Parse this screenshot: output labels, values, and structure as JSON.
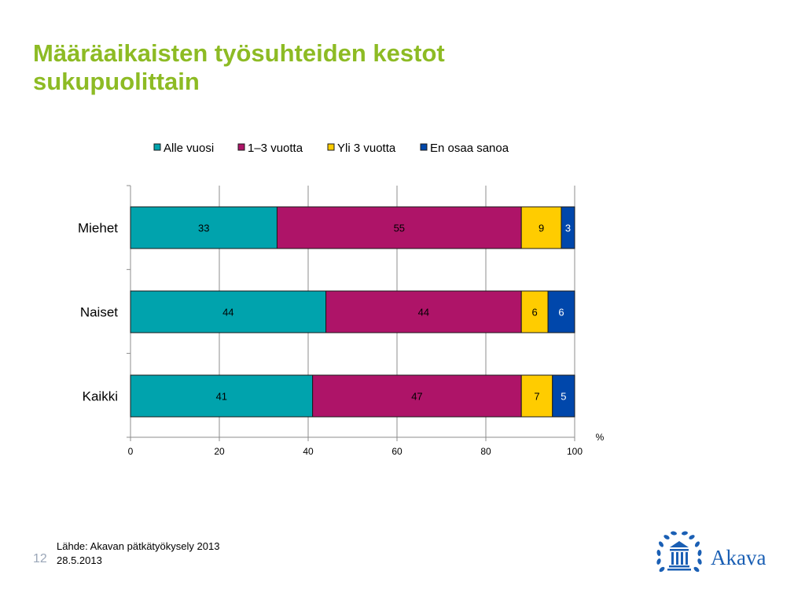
{
  "slide": {
    "title_line1": "Määräaikaisten työsuhteiden kestot",
    "title_line2": "sukupuolittain",
    "source_line1": "Lähde: Akavan pätkätyökysely 2013",
    "source_line2": "28.5.2013",
    "page_number": "12",
    "logo_text": "Akava"
  },
  "colors": {
    "title": "#8dbb24",
    "alle_vuosi": "#00a3ad",
    "vuotta_1_3": "#ae1468",
    "yli_3": "#ffcc00",
    "en_osaa": "#0047ab",
    "logo": "#1a5fb4"
  },
  "chart_data": {
    "type": "bar",
    "orientation": "horizontal",
    "stacked": true,
    "categories": [
      "Miehet",
      "Naiset",
      "Kaikki"
    ],
    "series": [
      {
        "name": "Alle vuosi",
        "color": "#00a3ad",
        "label_color": "#000000",
        "values": [
          33,
          44,
          41
        ]
      },
      {
        "name": "1–3 vuotta",
        "color": "#ae1468",
        "label_color": "#000000",
        "values": [
          55,
          44,
          47
        ]
      },
      {
        "name": "Yli 3 vuotta",
        "color": "#ffcc00",
        "label_color": "#000000",
        "values": [
          9,
          6,
          7
        ]
      },
      {
        "name": "En osaa sanoa",
        "color": "#0047ab",
        "label_color": "#ffffff",
        "values": [
          3,
          6,
          5
        ]
      }
    ],
    "xlim": [
      0,
      100
    ],
    "xticks": [
      "0",
      "20",
      "40",
      "60",
      "80",
      "100"
    ],
    "xunit": "%",
    "grid": true,
    "legend_position": "top"
  }
}
